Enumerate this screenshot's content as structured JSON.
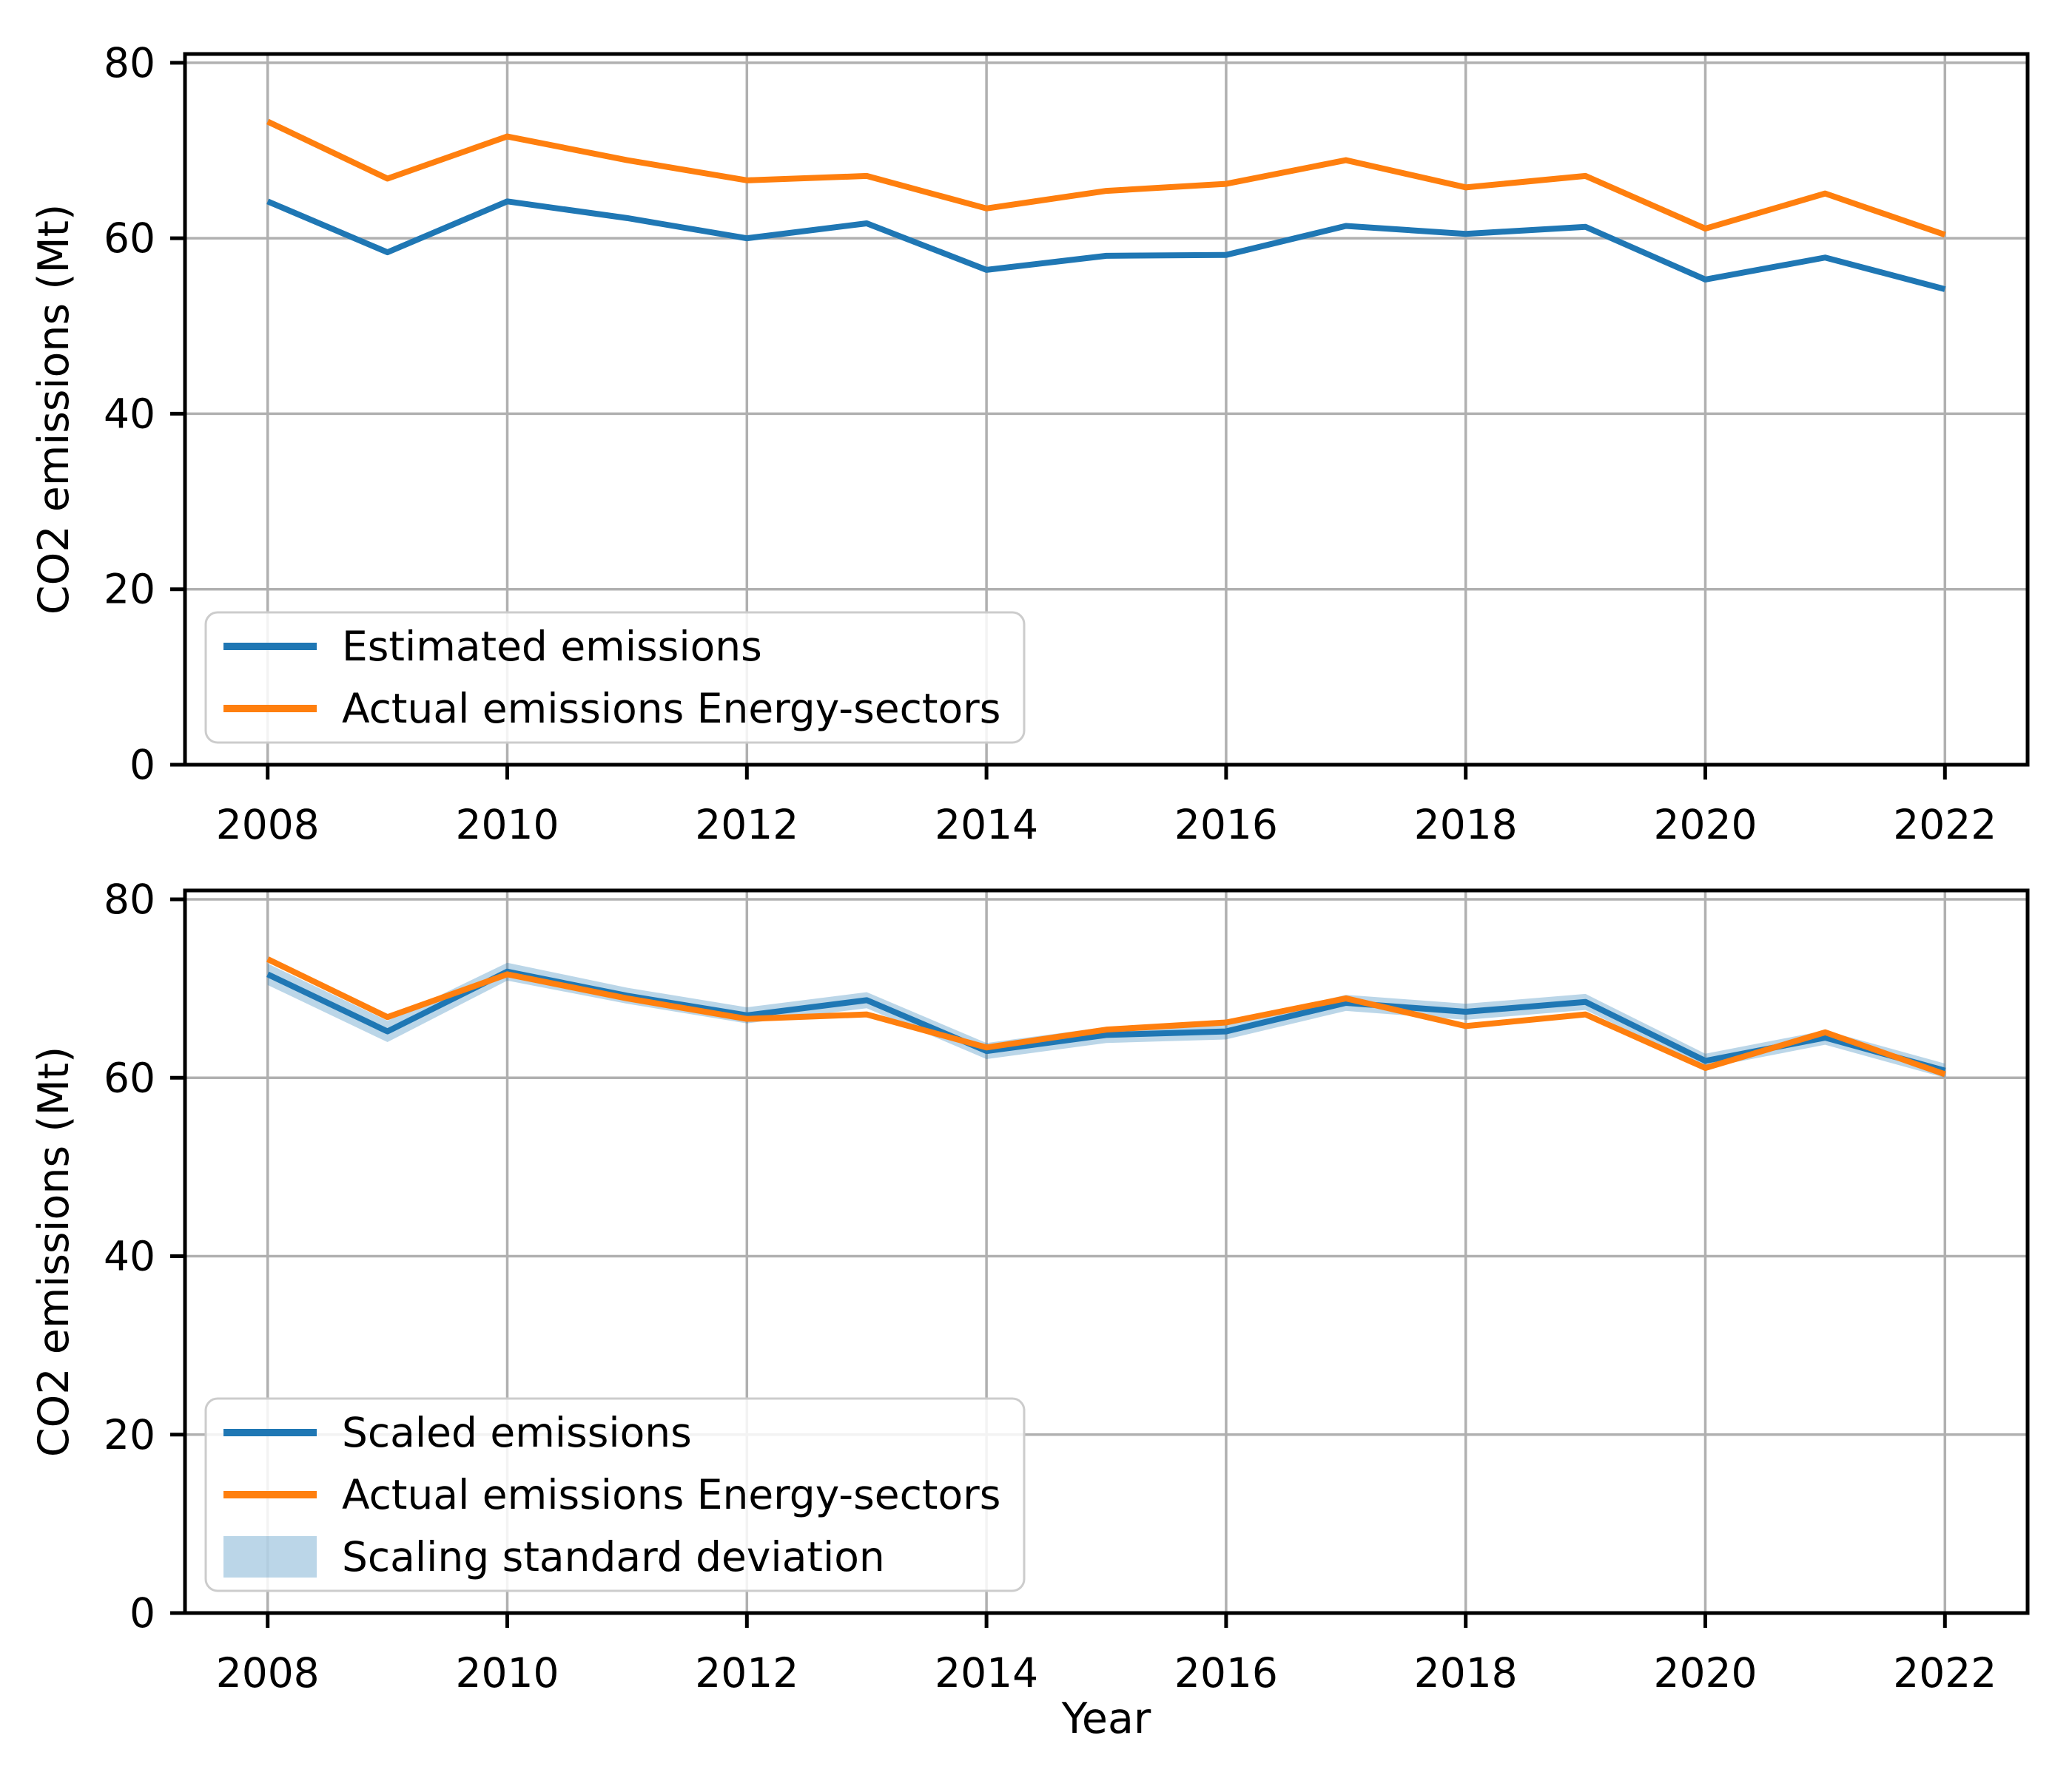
{
  "figure": {
    "background": "#ffffff",
    "grid_color": "#b0b0b0",
    "spine_color": "#000000",
    "legend_border_color": "#cccccc",
    "legend_bg": "#ffffff"
  },
  "chart_data": [
    {
      "type": "line",
      "panel": "top",
      "title": "",
      "xlabel": "",
      "ylabel": "CO2 emissions (Mt)",
      "grid": true,
      "legend_position": "lower left",
      "xlim": [
        2007.31,
        2022.69
      ],
      "ylim": [
        0,
        81
      ],
      "x": [
        2008,
        2009,
        2010,
        2011,
        2012,
        2013,
        2014,
        2015,
        2016,
        2017,
        2018,
        2019,
        2020,
        2021,
        2022
      ],
      "xticks": [
        2008,
        2010,
        2012,
        2014,
        2016,
        2018,
        2020,
        2022
      ],
      "xtick_labels": [
        "2008",
        "2010",
        "2012",
        "2014",
        "2016",
        "2018",
        "2020",
        "2022"
      ],
      "yticks": [
        0,
        20,
        40,
        60,
        80
      ],
      "ytick_labels": [
        "0",
        "20",
        "40",
        "60",
        "80"
      ],
      "series": [
        {
          "name": "Estimated emissions",
          "color": "#1f77b4",
          "values": [
            64.2,
            58.4,
            64.2,
            62.3,
            60.0,
            61.7,
            56.4,
            58.0,
            58.1,
            61.4,
            60.5,
            61.3,
            55.3,
            57.8,
            54.2
          ]
        },
        {
          "name": "Actual emissions Energy-sectors",
          "color": "#ff7f0e",
          "values": [
            73.3,
            66.8,
            71.6,
            68.9,
            66.6,
            67.1,
            63.4,
            65.4,
            66.2,
            68.9,
            65.8,
            67.1,
            61.1,
            65.1,
            60.4
          ]
        }
      ],
      "legend_entries": [
        "Estimated emissions",
        "Actual emissions Energy-sectors"
      ]
    },
    {
      "type": "line",
      "panel": "bottom",
      "title": "",
      "xlabel": "Year",
      "ylabel": "CO2 emissions (Mt)",
      "grid": true,
      "legend_position": "lower left",
      "xlim": [
        2007.31,
        2022.69
      ],
      "ylim": [
        0,
        81
      ],
      "x": [
        2008,
        2009,
        2010,
        2011,
        2012,
        2013,
        2014,
        2015,
        2016,
        2017,
        2018,
        2019,
        2020,
        2021,
        2022
      ],
      "xticks": [
        2008,
        2010,
        2012,
        2014,
        2016,
        2018,
        2020,
        2022
      ],
      "xtick_labels": [
        "2008",
        "2010",
        "2012",
        "2014",
        "2016",
        "2018",
        "2020",
        "2022"
      ],
      "yticks": [
        0,
        20,
        40,
        60,
        80
      ],
      "ytick_labels": [
        "0",
        "20",
        "40",
        "60",
        "80"
      ],
      "series": [
        {
          "name": "Scaled emissions",
          "color": "#1f77b4",
          "values": [
            71.6,
            65.2,
            71.9,
            69.2,
            67.0,
            68.7,
            63.0,
            64.8,
            65.2,
            68.4,
            67.4,
            68.5,
            61.9,
            64.5,
            60.8
          ]
        },
        {
          "name": "Actual emissions Energy-sectors",
          "color": "#ff7f0e",
          "values": [
            73.3,
            66.8,
            71.6,
            68.9,
            66.6,
            67.1,
            63.4,
            65.4,
            66.2,
            68.9,
            65.8,
            67.1,
            61.1,
            65.1,
            60.4
          ]
        }
      ],
      "band": {
        "name": "Scaling standard deviation",
        "center_series": "Scaled emissions",
        "std": [
          1.2,
          1.2,
          1.0,
          0.9,
          0.9,
          0.9,
          0.9,
          0.9,
          0.9,
          0.9,
          0.9,
          0.9,
          0.8,
          0.8,
          0.8
        ],
        "color": "#1f77b4",
        "opacity": 0.3
      },
      "legend_entries": [
        "Scaled emissions",
        "Actual emissions Energy-sectors",
        "Scaling standard deviation"
      ]
    }
  ]
}
